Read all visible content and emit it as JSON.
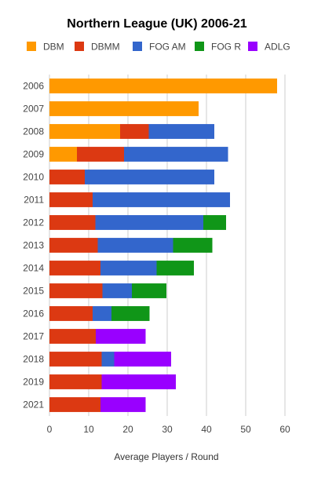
{
  "chart_data": {
    "type": "bar",
    "orientation": "horizontal",
    "stacked": true,
    "title": "Northern League (UK) 2006-21",
    "xlabel": "Average Players / Round",
    "ylabel": "",
    "xlim": [
      0,
      60
    ],
    "x_ticks": [
      "0",
      "10",
      "20",
      "30",
      "40",
      "50",
      "60"
    ],
    "grid": true,
    "legend_position": "top",
    "categories": [
      "2006",
      "2007",
      "2008",
      "2009",
      "2010",
      "2011",
      "2012",
      "2013",
      "2014",
      "2015",
      "2016",
      "2017",
      "2018",
      "2019",
      "2021"
    ],
    "series": [
      {
        "name": "DBM",
        "color": "#ff9900",
        "values": [
          58,
          38,
          18,
          7,
          0,
          0,
          0,
          0,
          0,
          0,
          0,
          0,
          0,
          0,
          0
        ]
      },
      {
        "name": "DBMM",
        "color": "#dc3912",
        "values": [
          0,
          0,
          7.3,
          12,
          9,
          11,
          11.7,
          12.3,
          13,
          13.5,
          11,
          11.8,
          13.3,
          13.3,
          13
        ]
      },
      {
        "name": "FOG AM",
        "color": "#3366cc",
        "values": [
          0,
          0,
          16.7,
          26.5,
          33,
          35,
          27.5,
          19.2,
          14.3,
          7.5,
          4.8,
          0,
          3.2,
          0,
          0
        ]
      },
      {
        "name": "FOG R",
        "color": "#109618",
        "values": [
          0,
          0,
          0,
          0,
          0,
          0,
          5.8,
          10,
          9.5,
          8.8,
          9.7,
          0,
          0,
          0,
          0
        ]
      },
      {
        "name": "ADLG",
        "color": "#9900ff",
        "values": [
          0,
          0,
          0,
          0,
          0,
          0,
          0,
          0,
          0,
          0,
          0,
          12.7,
          14.5,
          18.9,
          11.5
        ]
      }
    ]
  }
}
